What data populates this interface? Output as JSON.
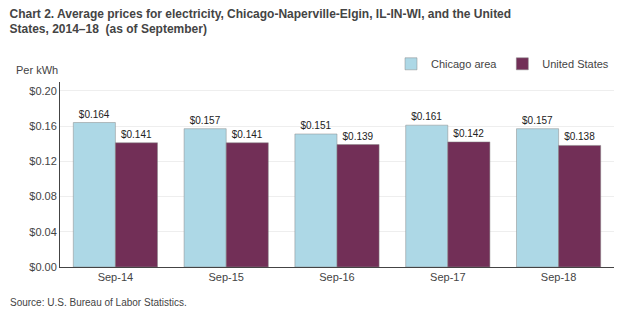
{
  "chart_data": {
    "type": "bar",
    "title": "Chart 2. Average prices for electricity, Chicago-Naperville-Elgin, IL-IN-WI, and the United\nStates, 2014–18  (as of September)",
    "ylabel": "Per kWh",
    "source": "Source: U.S. Bureau of Labor Statistics.",
    "categories": [
      "Sep-14",
      "Sep-15",
      "Sep-16",
      "Sep-17",
      "Sep-18"
    ],
    "series": [
      {
        "name": "Chicago area",
        "color": "#ADD8E6",
        "values": [
          0.164,
          0.157,
          0.151,
          0.161,
          0.157
        ],
        "value_labels": [
          "$0.164",
          "$0.157",
          "$0.151",
          "$0.161",
          "$0.157"
        ]
      },
      {
        "name": "United States",
        "color": "#722F57",
        "values": [
          0.141,
          0.141,
          0.139,
          0.142,
          0.138
        ],
        "value_labels": [
          "$0.141",
          "$0.141",
          "$0.139",
          "$0.142",
          "$0.138"
        ]
      }
    ],
    "ylim": [
      0.0,
      0.21
    ],
    "yticks": [
      {
        "value": 0.0,
        "label": "$0.00"
      },
      {
        "value": 0.04,
        "label": "$0.04"
      },
      {
        "value": 0.08,
        "label": "$0.08"
      },
      {
        "value": 0.12,
        "label": "$0.12"
      },
      {
        "value": 0.16,
        "label": "$0.16"
      },
      {
        "value": 0.2,
        "label": "$0.20"
      }
    ],
    "grid": true,
    "legend": "upper right",
    "data_labels": true
  }
}
